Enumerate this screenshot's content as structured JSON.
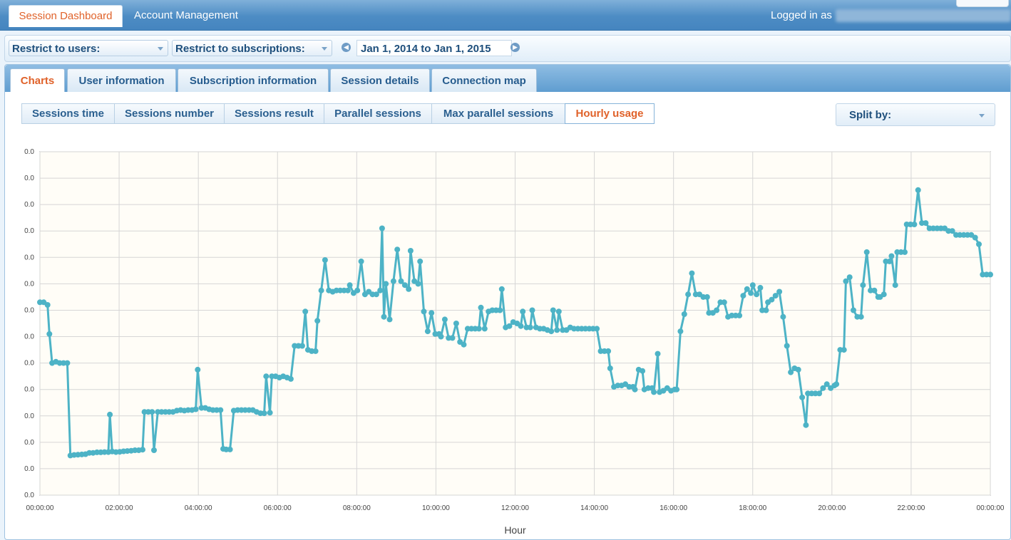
{
  "topbar": {
    "tabs": [
      {
        "label": "Session Dashboard",
        "active": true
      },
      {
        "label": "Account Management",
        "active": false
      }
    ],
    "logged_in_label": "Logged in as"
  },
  "filters": {
    "users_label": "Restrict to users:",
    "subscriptions_label": "Restrict to subscriptions:",
    "date_range": "Jan 1, 2014 to Jan 1, 2015"
  },
  "main_tabs": [
    {
      "label": "Charts",
      "active": true
    },
    {
      "label": "User information",
      "active": false
    },
    {
      "label": "Subscription information",
      "active": false
    },
    {
      "label": "Session details",
      "active": false
    },
    {
      "label": "Connection map",
      "active": false
    }
  ],
  "chart_tabs": [
    {
      "label": "Sessions time",
      "active": false
    },
    {
      "label": "Sessions number",
      "active": false
    },
    {
      "label": "Sessions result",
      "active": false
    },
    {
      "label": "Parallel sessions",
      "active": false
    },
    {
      "label": "Max parallel sessions",
      "active": false
    },
    {
      "label": "Hourly usage",
      "active": true
    }
  ],
  "split_by_label": "Split by:",
  "colors": {
    "accent": "#e0622a",
    "series": "#4db3c6",
    "plot_bg": "#fffdf7"
  },
  "chart_data": {
    "type": "line",
    "xlabel": "Hour",
    "ylabel": "",
    "x_ticks": [
      "00:00:00",
      "02:00:00",
      "04:00:00",
      "06:00:00",
      "08:00:00",
      "10:00:00",
      "12:00:00",
      "14:00:00",
      "16:00:00",
      "18:00:00",
      "20:00:00",
      "22:00:00",
      "00:00:00"
    ],
    "y_ticks": [
      "0.0",
      "0.0",
      "0.0",
      "0.0",
      "0.0",
      "0.0",
      "0.0",
      "0.0",
      "0.0",
      "0.0",
      "0.0",
      "0.0",
      "0.0",
      "0.0"
    ],
    "ylim": [
      0,
      13
    ],
    "xlim": [
      0,
      24
    ],
    "grid": true,
    "series": [
      {
        "values": [
          [
            0.0,
            7.3
          ],
          [
            0.1,
            7.3
          ],
          [
            0.2,
            7.2
          ],
          [
            0.25,
            6.1
          ],
          [
            0.32,
            5.0
          ],
          [
            0.42,
            5.05
          ],
          [
            0.52,
            5.0
          ],
          [
            0.62,
            5.0
          ],
          [
            0.72,
            5.0
          ],
          [
            0.8,
            1.5
          ],
          [
            0.9,
            1.52
          ],
          [
            1.0,
            1.53
          ],
          [
            1.1,
            1.54
          ],
          [
            1.2,
            1.55
          ],
          [
            1.3,
            1.6
          ],
          [
            1.4,
            1.6
          ],
          [
            1.5,
            1.62
          ],
          [
            1.6,
            1.62
          ],
          [
            1.7,
            1.63
          ],
          [
            1.8,
            1.63
          ],
          [
            1.84,
            3.05
          ],
          [
            1.9,
            1.65
          ],
          [
            2.0,
            1.63
          ],
          [
            2.1,
            1.64
          ],
          [
            2.2,
            1.66
          ],
          [
            2.3,
            1.67
          ],
          [
            2.4,
            1.68
          ],
          [
            2.5,
            1.7
          ],
          [
            2.6,
            1.7
          ],
          [
            2.7,
            1.72
          ],
          [
            2.75,
            3.15
          ],
          [
            2.85,
            3.15
          ],
          [
            2.95,
            3.15
          ],
          [
            3.0,
            1.7
          ],
          [
            3.1,
            3.15
          ],
          [
            3.2,
            3.15
          ],
          [
            3.3,
            3.15
          ],
          [
            3.4,
            3.15
          ],
          [
            3.5,
            3.15
          ],
          [
            3.6,
            3.2
          ],
          [
            3.7,
            3.22
          ],
          [
            3.8,
            3.2
          ],
          [
            3.9,
            3.22
          ],
          [
            4.0,
            3.22
          ],
          [
            4.1,
            3.25
          ],
          [
            4.15,
            4.75
          ],
          [
            4.25,
            3.3
          ],
          [
            4.35,
            3.3
          ],
          [
            4.45,
            3.25
          ],
          [
            4.55,
            3.22
          ],
          [
            4.65,
            3.22
          ],
          [
            4.75,
            3.22
          ],
          [
            4.82,
            1.75
          ],
          [
            4.9,
            1.73
          ],
          [
            5.0,
            1.73
          ],
          [
            5.1,
            3.2
          ],
          [
            5.2,
            3.22
          ],
          [
            5.3,
            3.22
          ],
          [
            5.4,
            3.22
          ],
          [
            5.5,
            3.22
          ],
          [
            5.6,
            3.22
          ],
          [
            5.7,
            3.15
          ],
          [
            5.8,
            3.1
          ],
          [
            5.9,
            3.1
          ],
          [
            5.95,
            4.5
          ],
          [
            6.05,
            3.12
          ],
          [
            6.1,
            4.5
          ],
          [
            6.2,
            4.5
          ],
          [
            6.3,
            4.45
          ],
          [
            6.4,
            4.5
          ],
          [
            6.5,
            4.45
          ],
          [
            6.6,
            4.4
          ],
          [
            6.7,
            5.65
          ],
          [
            6.8,
            5.65
          ],
          [
            6.9,
            5.65
          ],
          [
            6.98,
            6.95
          ],
          [
            7.05,
            5.5
          ],
          [
            7.15,
            5.45
          ],
          [
            7.25,
            5.45
          ],
          [
            7.3,
            6.6
          ],
          [
            7.4,
            7.75
          ],
          [
            7.5,
            8.9
          ],
          [
            7.6,
            7.75
          ],
          [
            7.7,
            7.7
          ],
          [
            7.8,
            7.75
          ],
          [
            7.9,
            7.75
          ],
          [
            8.0,
            7.75
          ],
          [
            8.1,
            7.75
          ],
          [
            8.15,
            7.95
          ],
          [
            8.25,
            7.65
          ],
          [
            8.35,
            7.75
          ],
          [
            8.45,
            8.85
          ],
          [
            8.55,
            7.6
          ],
          [
            8.65,
            7.7
          ],
          [
            8.75,
            7.6
          ],
          [
            8.85,
            7.6
          ],
          [
            8.95,
            7.75
          ],
          [
            9.0,
            10.1
          ],
          [
            9.05,
            6.75
          ],
          [
            9.1,
            8.0
          ],
          [
            9.2,
            6.65
          ],
          [
            9.3,
            8.1
          ],
          [
            9.4,
            9.3
          ],
          [
            9.5,
            8.1
          ],
          [
            9.6,
            7.95
          ],
          [
            9.7,
            7.8
          ],
          [
            9.75,
            9.25
          ],
          [
            9.85,
            8.1
          ],
          [
            9.95,
            8.0
          ],
          [
            10.0,
            8.85
          ],
          [
            10.1,
            6.95
          ],
          [
            10.2,
            6.2
          ],
          [
            10.3,
            6.9
          ],
          [
            10.4,
            6.1
          ],
          [
            10.5,
            6.1
          ],
          [
            10.55,
            6.0
          ],
          [
            10.65,
            6.65
          ],
          [
            10.75,
            5.95
          ],
          [
            10.85,
            5.95
          ],
          [
            10.95,
            6.5
          ],
          [
            11.05,
            5.8
          ],
          [
            11.15,
            5.7
          ],
          [
            11.25,
            6.3
          ],
          [
            11.35,
            6.3
          ],
          [
            11.45,
            6.3
          ],
          [
            11.55,
            6.3
          ],
          [
            11.6,
            7.1
          ],
          [
            11.7,
            6.3
          ],
          [
            11.8,
            6.95
          ],
          [
            11.9,
            7.0
          ],
          [
            12.0,
            7.0
          ],
          [
            12.1,
            7.0
          ],
          [
            12.15,
            7.8
          ],
          [
            12.25,
            6.35
          ],
          [
            12.35,
            6.4
          ],
          [
            12.45,
            6.55
          ],
          [
            12.55,
            6.5
          ],
          [
            12.65,
            6.4
          ],
          [
            12.7,
            6.95
          ],
          [
            12.8,
            6.35
          ],
          [
            12.9,
            6.35
          ],
          [
            12.95,
            7.0
          ],
          [
            13.05,
            6.35
          ],
          [
            13.15,
            6.3
          ],
          [
            13.25,
            6.3
          ],
          [
            13.35,
            6.25
          ],
          [
            13.45,
            6.2
          ],
          [
            13.5,
            7.0
          ],
          [
            13.6,
            6.25
          ],
          [
            13.65,
            6.95
          ],
          [
            13.75,
            6.25
          ],
          [
            13.85,
            6.25
          ],
          [
            13.95,
            6.35
          ],
          [
            14.05,
            6.3
          ],
          [
            14.15,
            6.3
          ],
          [
            14.25,
            6.3
          ],
          [
            14.35,
            6.3
          ],
          [
            14.45,
            6.3
          ],
          [
            14.55,
            6.3
          ],
          [
            14.65,
            6.3
          ],
          [
            14.75,
            5.45
          ],
          [
            14.85,
            5.45
          ],
          [
            14.95,
            5.45
          ],
          [
            15.0,
            4.8
          ],
          [
            15.1,
            4.1
          ],
          [
            15.2,
            4.15
          ],
          [
            15.3,
            4.15
          ],
          [
            15.4,
            4.2
          ],
          [
            15.5,
            4.1
          ],
          [
            15.6,
            4.1
          ],
          [
            15.65,
            4.0
          ],
          [
            15.75,
            4.75
          ],
          [
            15.85,
            4.7
          ],
          [
            15.9,
            4.0
          ],
          [
            16.0,
            4.05
          ],
          [
            16.1,
            4.05
          ],
          [
            16.15,
            3.9
          ],
          [
            16.25,
            5.35
          ],
          [
            16.3,
            3.9
          ],
          [
            16.4,
            3.95
          ],
          [
            16.5,
            4.05
          ],
          [
            16.6,
            3.95
          ],
          [
            16.7,
            4.0
          ],
          [
            16.75,
            4.0
          ],
          [
            16.85,
            6.2
          ],
          [
            16.95,
            6.85
          ],
          [
            17.05,
            7.6
          ],
          [
            17.15,
            8.4
          ],
          [
            17.25,
            7.6
          ],
          [
            17.35,
            7.6
          ],
          [
            17.45,
            7.5
          ],
          [
            17.55,
            7.5
          ],
          [
            17.6,
            6.9
          ],
          [
            17.7,
            6.9
          ],
          [
            17.8,
            7.0
          ],
          [
            17.9,
            7.3
          ],
          [
            18.0,
            7.3
          ],
          [
            18.1,
            6.75
          ],
          [
            18.2,
            6.8
          ],
          [
            18.3,
            6.8
          ],
          [
            18.4,
            6.8
          ],
          [
            18.5,
            7.55
          ],
          [
            18.6,
            7.8
          ],
          [
            18.7,
            7.65
          ],
          [
            18.75,
            7.95
          ],
          [
            18.85,
            7.6
          ],
          [
            18.95,
            7.85
          ],
          [
            19.0,
            7.0
          ],
          [
            19.1,
            7.0
          ],
          [
            19.15,
            7.3
          ],
          [
            19.25,
            7.4
          ],
          [
            19.35,
            7.55
          ],
          [
            19.45,
            7.7
          ],
          [
            19.55,
            6.75
          ],
          [
            19.65,
            5.65
          ],
          [
            19.75,
            4.65
          ],
          [
            19.85,
            4.8
          ],
          [
            19.95,
            4.75
          ],
          [
            20.05,
            3.7
          ],
          [
            20.15,
            2.65
          ],
          [
            20.2,
            3.85
          ],
          [
            20.3,
            3.85
          ],
          [
            20.4,
            3.85
          ],
          [
            20.5,
            3.85
          ],
          [
            20.6,
            4.05
          ],
          [
            20.7,
            4.2
          ],
          [
            20.8,
            4.05
          ],
          [
            20.9,
            4.15
          ],
          [
            20.95,
            4.2
          ],
          [
            21.05,
            5.5
          ],
          [
            21.15,
            5.5
          ],
          [
            21.2,
            8.1
          ],
          [
            21.3,
            8.25
          ],
          [
            21.4,
            7.0
          ],
          [
            21.5,
            6.75
          ],
          [
            21.6,
            6.75
          ],
          [
            21.65,
            7.95
          ],
          [
            21.75,
            9.2
          ],
          [
            21.85,
            7.75
          ],
          [
            21.95,
            7.75
          ],
          [
            22.05,
            7.5
          ],
          [
            22.1,
            7.5
          ],
          [
            22.2,
            7.6
          ],
          [
            22.25,
            8.85
          ],
          [
            22.35,
            8.85
          ],
          [
            22.4,
            9.05
          ],
          [
            22.5,
            7.95
          ],
          [
            22.55,
            9.2
          ],
          [
            22.65,
            9.2
          ],
          [
            22.75,
            9.2
          ],
          [
            22.8,
            10.25
          ],
          [
            22.9,
            10.25
          ],
          [
            23.0,
            10.25
          ],
          [
            23.1,
            11.55
          ],
          [
            23.2,
            10.3
          ],
          [
            23.3,
            10.3
          ],
          [
            23.4,
            10.1
          ],
          [
            23.5,
            10.1
          ],
          [
            23.6,
            10.1
          ],
          [
            23.7,
            10.1
          ],
          [
            23.8,
            10.1
          ],
          [
            23.9,
            10.0
          ],
          [
            24.0,
            10.0
          ],
          [
            24.1,
            9.85
          ],
          [
            24.2,
            9.85
          ],
          [
            24.3,
            9.85
          ],
          [
            24.4,
            9.85
          ],
          [
            24.5,
            9.85
          ],
          [
            24.6,
            9.75
          ],
          [
            24.7,
            9.5
          ],
          [
            24.8,
            8.35
          ],
          [
            24.9,
            8.35
          ],
          [
            25.0,
            8.35
          ]
        ]
      }
    ]
  }
}
